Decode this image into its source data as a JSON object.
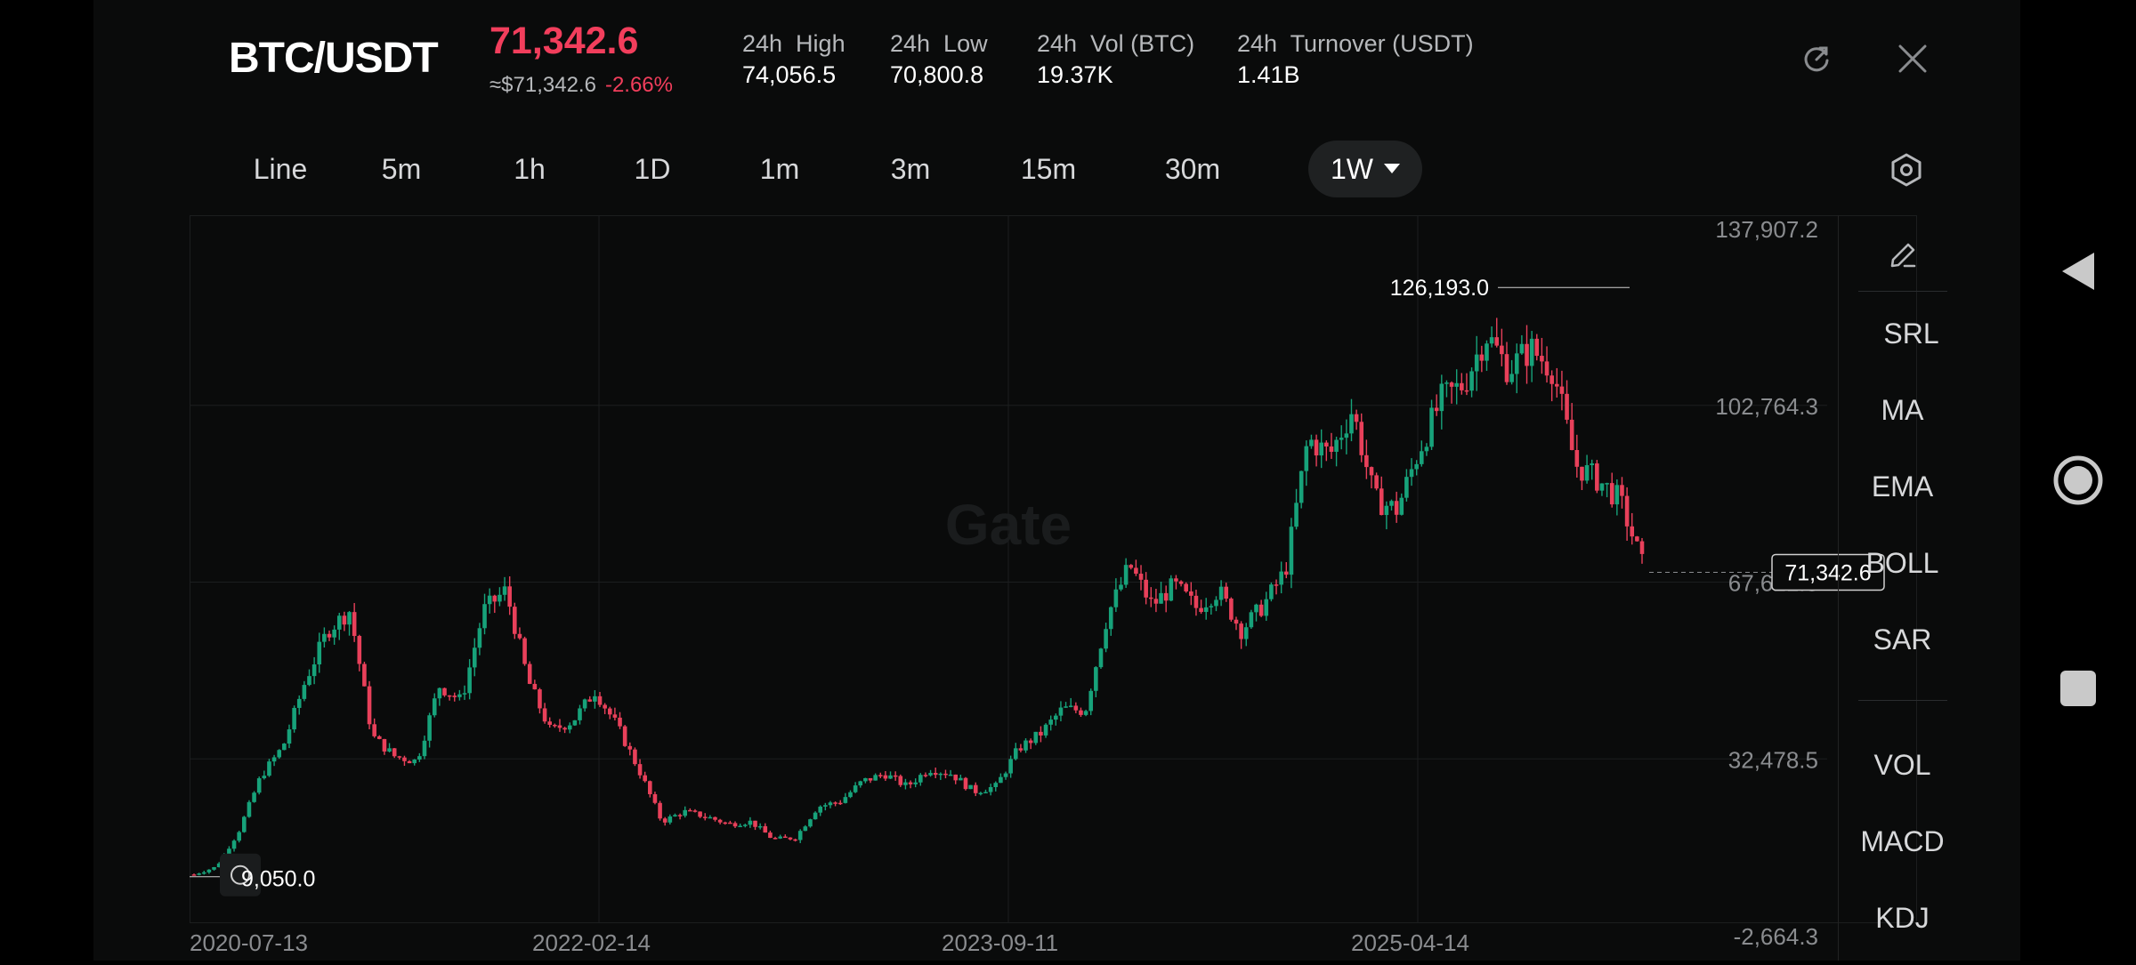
{
  "header": {
    "pair": "BTC/USDT",
    "price": "71,342.6",
    "approx": "≈$71,342.6",
    "change": "-2.66%",
    "stats": [
      {
        "label": "24h  High",
        "value": "74,056.5"
      },
      {
        "label": "24h  Low",
        "value": "70,800.8"
      },
      {
        "label": "24h  Vol (BTC)",
        "value": "19.37K"
      },
      {
        "label": "24h  Turnover (USDT)",
        "value": "1.41B"
      }
    ]
  },
  "timeframes": [
    "Line",
    "5m",
    "1h",
    "1D",
    "1m",
    "3m",
    "15m",
    "30m",
    "1W"
  ],
  "active_timeframe": "1W",
  "side_indicators": {
    "main": [
      "SRL",
      "MA",
      "EMA",
      "BOLL",
      "SAR"
    ],
    "sub": [
      "VOL",
      "MACD",
      "KDJ"
    ]
  },
  "watermark": "Gate",
  "chart_data": {
    "type": "candlestick",
    "y_ticks": [
      "137,907.2",
      "102,764.3",
      "67,621.3",
      "32,478.5",
      "-2,664.3"
    ],
    "ylim": [
      -2664.3,
      137907.2
    ],
    "x_ticks": [
      "2020-07-13",
      "2022-02-14",
      "2023-09-11",
      "2025-04-14"
    ],
    "annotations": {
      "high": "126,193.0",
      "low": "9,050.0",
      "current": "71,342.6"
    },
    "series": [
      {
        "date": "2020-07",
        "close": 9500
      },
      {
        "date": "2020-09",
        "close": 11000
      },
      {
        "date": "2020-11",
        "close": 18000
      },
      {
        "date": "2020-12",
        "close": 29000
      },
      {
        "date": "2021-01",
        "close": 35000
      },
      {
        "date": "2021-02",
        "close": 48000
      },
      {
        "date": "2021-03",
        "close": 58000
      },
      {
        "date": "2021-04",
        "close": 62000
      },
      {
        "date": "2021-05",
        "close": 37000
      },
      {
        "date": "2021-06",
        "close": 33000
      },
      {
        "date": "2021-07",
        "close": 32000
      },
      {
        "date": "2021-08",
        "close": 47000
      },
      {
        "date": "2021-09",
        "close": 44000
      },
      {
        "date": "2021-10",
        "close": 62000
      },
      {
        "date": "2021-11",
        "close": 66000
      },
      {
        "date": "2021-12",
        "close": 48000
      },
      {
        "date": "2022-01",
        "close": 38000
      },
      {
        "date": "2022-02",
        "close": 40000
      },
      {
        "date": "2022-03",
        "close": 46000
      },
      {
        "date": "2022-04",
        "close": 39000
      },
      {
        "date": "2022-05",
        "close": 30000
      },
      {
        "date": "2022-06",
        "close": 20000
      },
      {
        "date": "2022-07",
        "close": 22000
      },
      {
        "date": "2022-08",
        "close": 21000
      },
      {
        "date": "2022-09",
        "close": 19500
      },
      {
        "date": "2022-10",
        "close": 20000
      },
      {
        "date": "2022-11",
        "close": 16500
      },
      {
        "date": "2022-12",
        "close": 16800
      },
      {
        "date": "2023-01",
        "close": 23000
      },
      {
        "date": "2023-02",
        "close": 24000
      },
      {
        "date": "2023-03",
        "close": 28000
      },
      {
        "date": "2023-04",
        "close": 29500
      },
      {
        "date": "2023-05",
        "close": 27000
      },
      {
        "date": "2023-06",
        "close": 30500
      },
      {
        "date": "2023-07",
        "close": 29500
      },
      {
        "date": "2023-08",
        "close": 26000
      },
      {
        "date": "2023-09",
        "close": 27000
      },
      {
        "date": "2023-10",
        "close": 34500
      },
      {
        "date": "2023-11",
        "close": 37500
      },
      {
        "date": "2023-12",
        "close": 42500
      },
      {
        "date": "2024-01",
        "close": 42000
      },
      {
        "date": "2024-02",
        "close": 61000
      },
      {
        "date": "2024-03",
        "close": 71000
      },
      {
        "date": "2024-04",
        "close": 63000
      },
      {
        "date": "2024-05",
        "close": 67000
      },
      {
        "date": "2024-06",
        "close": 62500
      },
      {
        "date": "2024-07",
        "close": 66000
      },
      {
        "date": "2024-08",
        "close": 58000
      },
      {
        "date": "2024-09",
        "close": 63000
      },
      {
        "date": "2024-10",
        "close": 70000
      },
      {
        "date": "2024-11",
        "close": 96000
      },
      {
        "date": "2024-12",
        "close": 93000
      },
      {
        "date": "2025-01",
        "close": 102000
      },
      {
        "date": "2025-02",
        "close": 84000
      },
      {
        "date": "2025-03",
        "close": 82000
      },
      {
        "date": "2025-04",
        "close": 94000
      },
      {
        "date": "2025-05",
        "close": 104000
      },
      {
        "date": "2025-06",
        "close": 107000
      },
      {
        "date": "2025-07",
        "close": 117000
      },
      {
        "date": "2025-08",
        "close": 110000
      },
      {
        "date": "2025-09",
        "close": 114000
      },
      {
        "date": "2025-10",
        "close": 110000
      },
      {
        "date": "2025-11",
        "close": 91000
      },
      {
        "date": "2025-12",
        "close": 88000
      },
      {
        "date": "2026-01",
        "close": 84000
      },
      {
        "date": "2026-02",
        "close": 71342.6
      }
    ]
  },
  "colors": {
    "up": "#17a27a",
    "down": "#e8405a",
    "price": "#f23e5c",
    "grid": "#1c1e1f"
  }
}
